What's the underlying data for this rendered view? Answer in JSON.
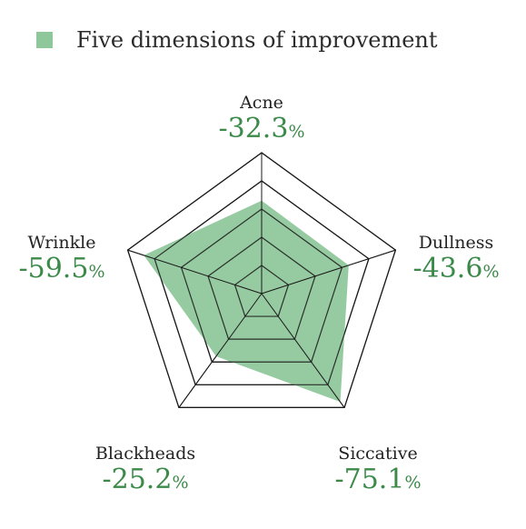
{
  "chart_data": {
    "type": "radar",
    "legend": {
      "label": "Five dimensions of improvement",
      "color": "#8dc79a"
    },
    "axes": [
      "Acne",
      "Dullness",
      "Siccative",
      "Blackheads",
      "Wrinkle"
    ],
    "display_values": [
      "-32.3",
      "-43.6",
      "-75.1",
      "-25.2",
      "-59.5"
    ],
    "unit": "%",
    "series": [
      {
        "name": "Five dimensions of improvement",
        "values": [
          0.66,
          0.65,
          0.95,
          0.55,
          0.88
        ]
      }
    ],
    "rings": 5,
    "value_color": "#3c8a4a",
    "grid_color": "#1a1a1a"
  }
}
